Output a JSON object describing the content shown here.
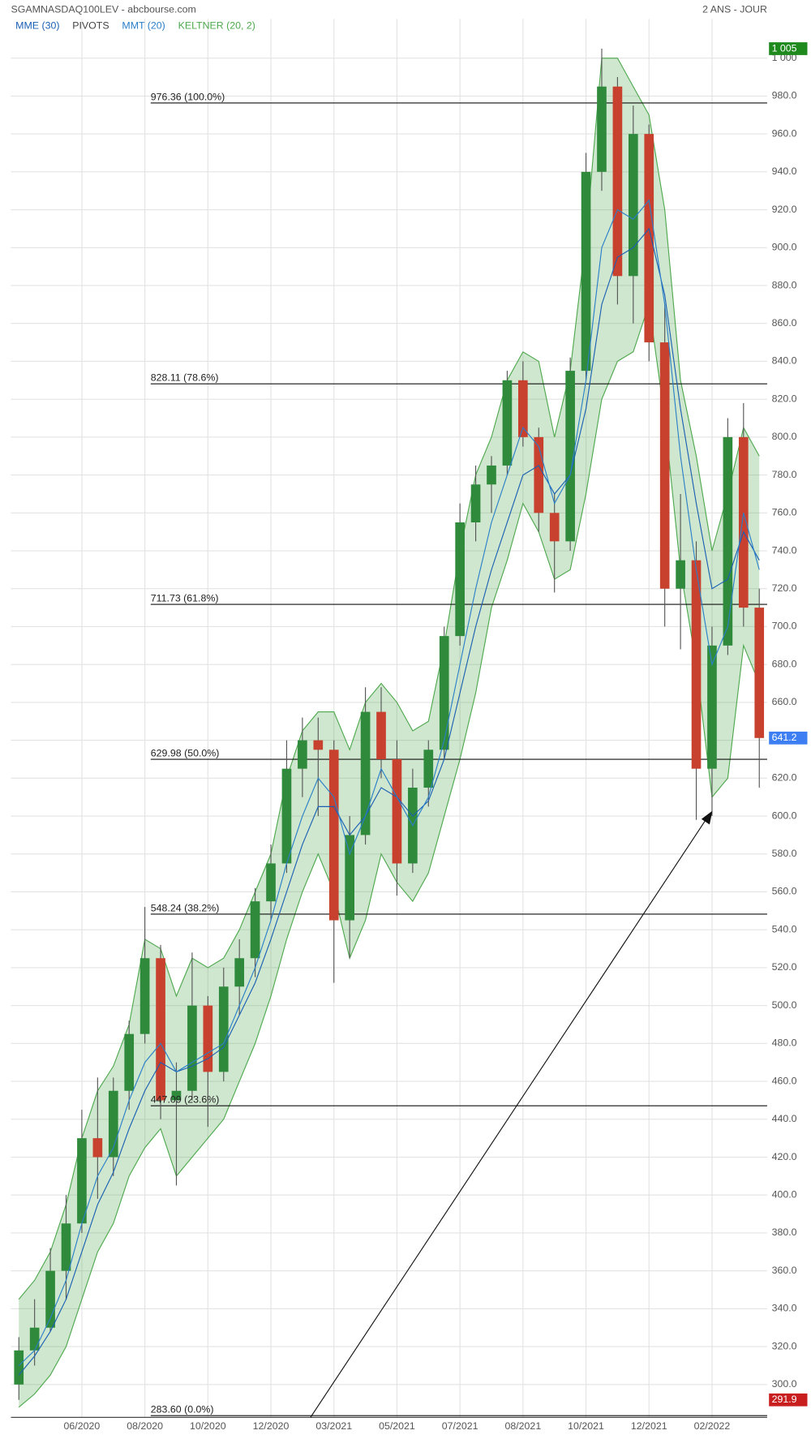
{
  "chart_data": {
    "type": "candlestick",
    "title": "SGAMNASDAQ100LEV - abcbourse.com",
    "period": "2 ANS - JOUR",
    "categories": [
      null,
      null,
      null,
      null,
      "06/2020",
      null,
      null,
      null,
      "08/2020",
      null,
      null,
      null,
      "10/2020",
      null,
      null,
      null,
      "12/2020",
      null,
      null,
      null,
      "03/2021",
      null,
      null,
      null,
      "05/2021",
      null,
      null,
      null,
      "07/2021",
      null,
      null,
      null,
      "08/2021",
      null,
      null,
      null,
      "10/2021",
      null,
      null,
      null,
      "12/2021",
      null,
      null,
      null,
      "02/2022",
      null,
      null,
      null
    ],
    "open": [
      300,
      318,
      330,
      360,
      385,
      430,
      420,
      455,
      485,
      525,
      450,
      455,
      500,
      465,
      510,
      525,
      555,
      575,
      625,
      640,
      635,
      545,
      590,
      655,
      630,
      575,
      615,
      635,
      695,
      755,
      775,
      785,
      830,
      800,
      760,
      745,
      835,
      940,
      985,
      885,
      960,
      850,
      720,
      735,
      625,
      690,
      800,
      710
    ],
    "high": [
      325,
      345,
      372,
      400,
      445,
      462,
      462,
      492,
      552,
      532,
      470,
      528,
      505,
      520,
      535,
      562,
      585,
      640,
      652,
      652,
      640,
      600,
      668,
      668,
      640,
      625,
      640,
      700,
      765,
      785,
      790,
      835,
      840,
      805,
      770,
      842,
      950,
      1005,
      990,
      975,
      965,
      870,
      770,
      745,
      700,
      810,
      818,
      720
    ],
    "low": [
      291.9,
      310,
      328,
      345,
      380,
      398,
      410,
      445,
      480,
      440,
      405,
      450,
      436,
      460,
      495,
      515,
      545,
      570,
      610,
      600,
      512,
      525,
      585,
      620,
      558,
      570,
      605,
      630,
      690,
      745,
      760,
      780,
      795,
      750,
      718,
      740,
      830,
      930,
      870,
      860,
      840,
      700,
      688,
      598,
      600,
      685,
      700,
      615
    ],
    "close": [
      318,
      330,
      360,
      385,
      430,
      420,
      455,
      485,
      525,
      450,
      455,
      500,
      465,
      510,
      525,
      555,
      575,
      625,
      640,
      635,
      545,
      590,
      655,
      630,
      575,
      615,
      635,
      695,
      755,
      775,
      785,
      830,
      800,
      760,
      745,
      835,
      940,
      985,
      885,
      960,
      850,
      720,
      735,
      625,
      690,
      800,
      710,
      641.2
    ],
    "up_color": "#2f8a3c",
    "down_color": "#c8412e",
    "indicators": [
      {
        "name": "MME (30)",
        "color": "#1a5fb4",
        "values": [
          305,
          315,
          328,
          345,
          370,
          395,
          412,
          435,
          455,
          470,
          465,
          468,
          472,
          478,
          495,
          512,
          535,
          560,
          585,
          605,
          605,
          590,
          600,
          615,
          610,
          600,
          608,
          630,
          665,
          700,
          730,
          755,
          780,
          785,
          770,
          780,
          815,
          870,
          895,
          900,
          910,
          875,
          815,
          765,
          720,
          725,
          750,
          735
        ]
      },
      {
        "name": "PIVOTS",
        "color": "#444444"
      },
      {
        "name": "MMT (20)",
        "color": "#2a7fc9",
        "values": [
          310,
          318,
          335,
          355,
          385,
          410,
          425,
          450,
          470,
          480,
          465,
          470,
          475,
          480,
          500,
          520,
          545,
          575,
          600,
          620,
          610,
          580,
          600,
          625,
          610,
          595,
          610,
          640,
          680,
          720,
          755,
          780,
          805,
          795,
          765,
          780,
          830,
          900,
          920,
          915,
          925,
          870,
          790,
          730,
          680,
          700,
          760,
          730
        ]
      },
      {
        "name": "KELTNER (20, 2)",
        "color": "#4ea84e",
        "upper": [
          345,
          355,
          370,
          395,
          430,
          455,
          468,
          490,
          535,
          530,
          505,
          525,
          520,
          525,
          540,
          560,
          580,
          620,
          645,
          655,
          655,
          635,
          660,
          670,
          660,
          645,
          650,
          690,
          740,
          780,
          800,
          830,
          845,
          840,
          800,
          835,
          905,
          1000,
          1000,
          985,
          970,
          920,
          830,
          790,
          740,
          770,
          805,
          790
        ],
        "lower": [
          288,
          295,
          305,
          320,
          345,
          370,
          385,
          410,
          425,
          435,
          410,
          420,
          430,
          440,
          460,
          480,
          505,
          535,
          560,
          580,
          560,
          525,
          545,
          580,
          565,
          555,
          570,
          600,
          630,
          665,
          710,
          735,
          765,
          750,
          725,
          730,
          770,
          820,
          840,
          845,
          870,
          810,
          730,
          680,
          610,
          620,
          690,
          670
        ]
      }
    ],
    "fib_levels": [
      {
        "value": 976.36,
        "label": "976.36  (100.0%)"
      },
      {
        "value": 828.11,
        "label": "828.11  (78.6%)"
      },
      {
        "value": 711.73,
        "label": "711.73  (61.8%)"
      },
      {
        "value": 629.98,
        "label": "629.98  (50.0%)"
      },
      {
        "value": 548.24,
        "label": "548.24  (38.2%)"
      },
      {
        "value": 447.09,
        "label": "447.09  (23.6%)"
      },
      {
        "value": 283.6,
        "label": "283.60  (0.0%)"
      }
    ],
    "price_badges": [
      {
        "value": 1005,
        "label": "1 005",
        "color": "#1e8a1e"
      },
      {
        "value": 641.2,
        "color": "#3d7ff2"
      },
      {
        "value": 291.9,
        "color": "#c81e1e"
      }
    ],
    "ylim": [
      282.65,
      1020.73
    ],
    "yticks": [
      {
        "value": 300,
        "label": "300.0"
      },
      {
        "value": 320,
        "label": "320.0"
      },
      {
        "value": 340,
        "label": "340.0"
      },
      {
        "value": 360,
        "label": "360.0"
      },
      {
        "value": 380,
        "label": "380.0"
      },
      {
        "value": 400,
        "label": "400.0"
      },
      {
        "value": 420,
        "label": "420.0"
      },
      {
        "value": 440,
        "label": "440.0"
      },
      {
        "value": 460,
        "label": "460.0"
      },
      {
        "value": 480,
        "label": "480.0"
      },
      {
        "value": 500,
        "label": "500.0"
      },
      {
        "value": 520,
        "label": "520.0"
      },
      {
        "value": 540,
        "label": "540.0"
      },
      {
        "value": 560,
        "label": "560.0"
      },
      {
        "value": 580,
        "label": "580.0"
      },
      {
        "value": 600,
        "label": "600.0"
      },
      {
        "value": 620,
        "label": "620.0"
      },
      {
        "value": 640,
        "label": "640.0"
      },
      {
        "value": 660,
        "label": "660.0"
      },
      {
        "value": 680,
        "label": "680.0"
      },
      {
        "value": 700,
        "label": "700.0"
      },
      {
        "value": 720,
        "label": "720.0"
      },
      {
        "value": 740,
        "label": "740.0"
      },
      {
        "value": 760,
        "label": "760.0"
      },
      {
        "value": 780,
        "label": "780.0"
      },
      {
        "value": 800,
        "label": "800.0"
      },
      {
        "value": 820,
        "label": "820.0"
      },
      {
        "value": 840,
        "label": "840.0"
      },
      {
        "value": 860,
        "label": "860.0"
      },
      {
        "value": 880,
        "label": "880.0"
      },
      {
        "value": 900,
        "label": "900.0"
      },
      {
        "value": 920,
        "label": "920.0"
      },
      {
        "value": 940,
        "label": "940.0"
      },
      {
        "value": 960,
        "label": "960.0"
      },
      {
        "value": 980,
        "label": "980.0"
      },
      {
        "value": 1000,
        "label": "1 000"
      }
    ],
    "grid": true
  }
}
